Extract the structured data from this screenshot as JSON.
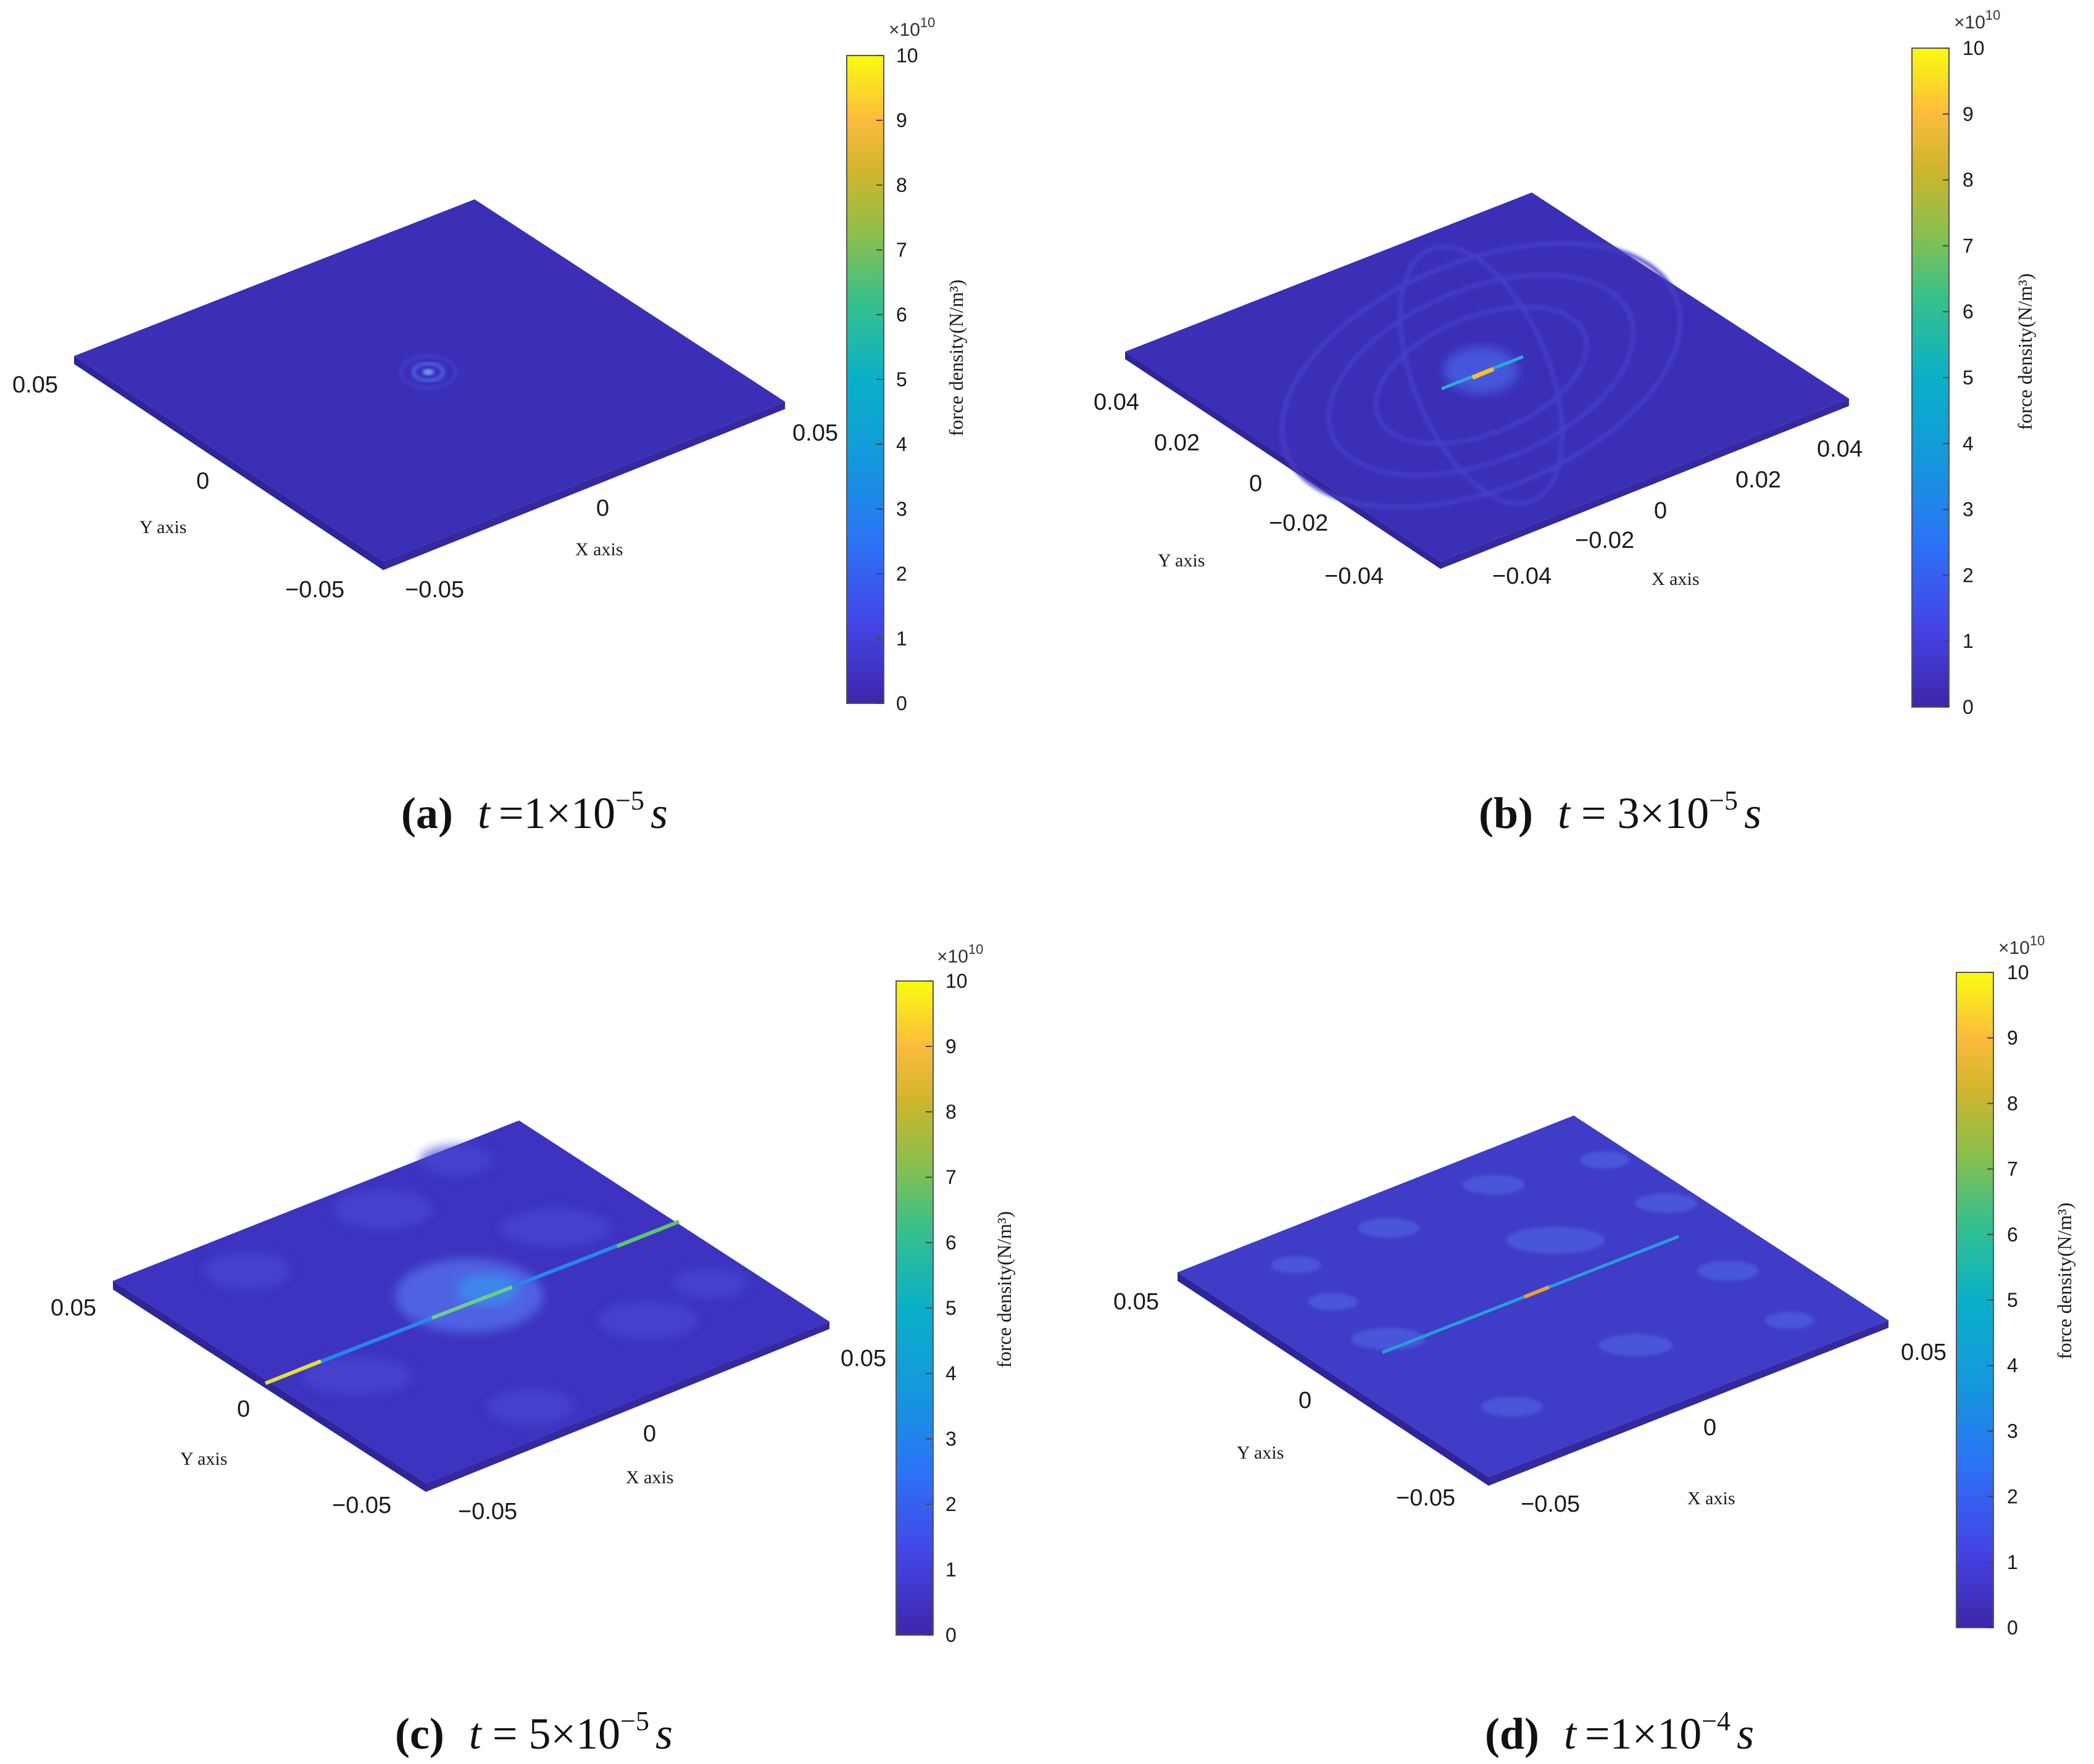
{
  "chart_data": [
    {
      "panel": "a",
      "type": "heatmap",
      "caption": {
        "label": "(a)",
        "t_mantissa": "1",
        "t_exponent": "−5",
        "unit": "s",
        "equation_prefix": "t ="
      },
      "xlabel": "X axis",
      "ylabel": "Y axis",
      "x_ticks": [
        "−0.05",
        "0",
        "0.05"
      ],
      "y_ticks": [
        "−0.05",
        "0",
        "0.05"
      ],
      "colorbar": {
        "label": "force density(N/m³)",
        "multiplier": "×10",
        "multiplier_exp": "10",
        "range": [
          0,
          10
        ],
        "ticks": [
          "0",
          "1",
          "2",
          "3",
          "4",
          "5",
          "6",
          "7",
          "8",
          "9",
          "10"
        ]
      },
      "features": {
        "background_level": 0.3,
        "hotspot_max": 4,
        "pattern": "small ring at center"
      }
    },
    {
      "panel": "b",
      "type": "heatmap",
      "caption": {
        "label": "(b)",
        "t_mantissa": "3",
        "t_exponent": "−5",
        "unit": "s",
        "equation_prefix": "t ="
      },
      "xlabel": "X axis",
      "ylabel": "Y axis",
      "x_ticks": [
        "−0.04",
        "−0.02",
        "0",
        "0.02",
        "0.04"
      ],
      "y_ticks": [
        "−0.04",
        "−0.02",
        "0",
        "0.02",
        "0.04"
      ],
      "colorbar": {
        "label": "force density(N/m³)",
        "multiplier": "×10",
        "multiplier_exp": "10",
        "range": [
          0,
          10
        ],
        "ticks": [
          "0",
          "1",
          "2",
          "3",
          "4",
          "5",
          "6",
          "7",
          "8",
          "9",
          "10"
        ]
      },
      "features": {
        "background_level": 0.4,
        "hotspot_max": 9,
        "pattern": "concentric elliptical wave rings with bright central line"
      }
    },
    {
      "panel": "c",
      "type": "heatmap",
      "caption": {
        "label": "(c)",
        "t_mantissa": "5",
        "t_exponent": "−5",
        "unit": "s",
        "equation_prefix": "t ="
      },
      "xlabel": "X axis",
      "ylabel": "Y axis",
      "x_ticks": [
        "−0.05",
        "0",
        "0.05"
      ],
      "y_ticks": [
        "−0.05",
        "0",
        "0.05"
      ],
      "colorbar": {
        "label": "force density(N/m³)",
        "multiplier": "×10",
        "multiplier_exp": "10",
        "range": [
          0,
          10
        ],
        "ticks": [
          "0",
          "1",
          "2",
          "3",
          "4",
          "5",
          "6",
          "7",
          "8",
          "9",
          "10"
        ]
      },
      "features": {
        "background_level": 1.0,
        "hotspot_max": 9.5,
        "pattern": "scattered field with bright diagonal crack line"
      }
    },
    {
      "panel": "d",
      "type": "heatmap",
      "caption": {
        "label": "(d)",
        "t_mantissa": "1",
        "t_exponent": "−4",
        "unit": "s",
        "equation_prefix": "t ="
      },
      "xlabel": "X axis",
      "ylabel": "Y axis",
      "x_ticks": [
        "−0.05",
        "0",
        "0.05"
      ],
      "y_ticks": [
        "−0.05",
        "0",
        "0.05"
      ],
      "colorbar": {
        "label": "force density(N/m³)",
        "multiplier": "×10",
        "multiplier_exp": "10",
        "range": [
          0,
          10
        ],
        "ticks": [
          "0",
          "1",
          "2",
          "3",
          "4",
          "5",
          "6",
          "7",
          "8",
          "9",
          "10"
        ]
      },
      "features": {
        "background_level": 1.5,
        "hotspot_max": 8,
        "pattern": "mottled field with faint diagonal crack line"
      }
    }
  ],
  "colors": {
    "parula_low": "#3e26a8",
    "parula_mid": "#1fb2c2",
    "parula_high": "#f9fb0e",
    "plate": "#3b2fb7"
  }
}
